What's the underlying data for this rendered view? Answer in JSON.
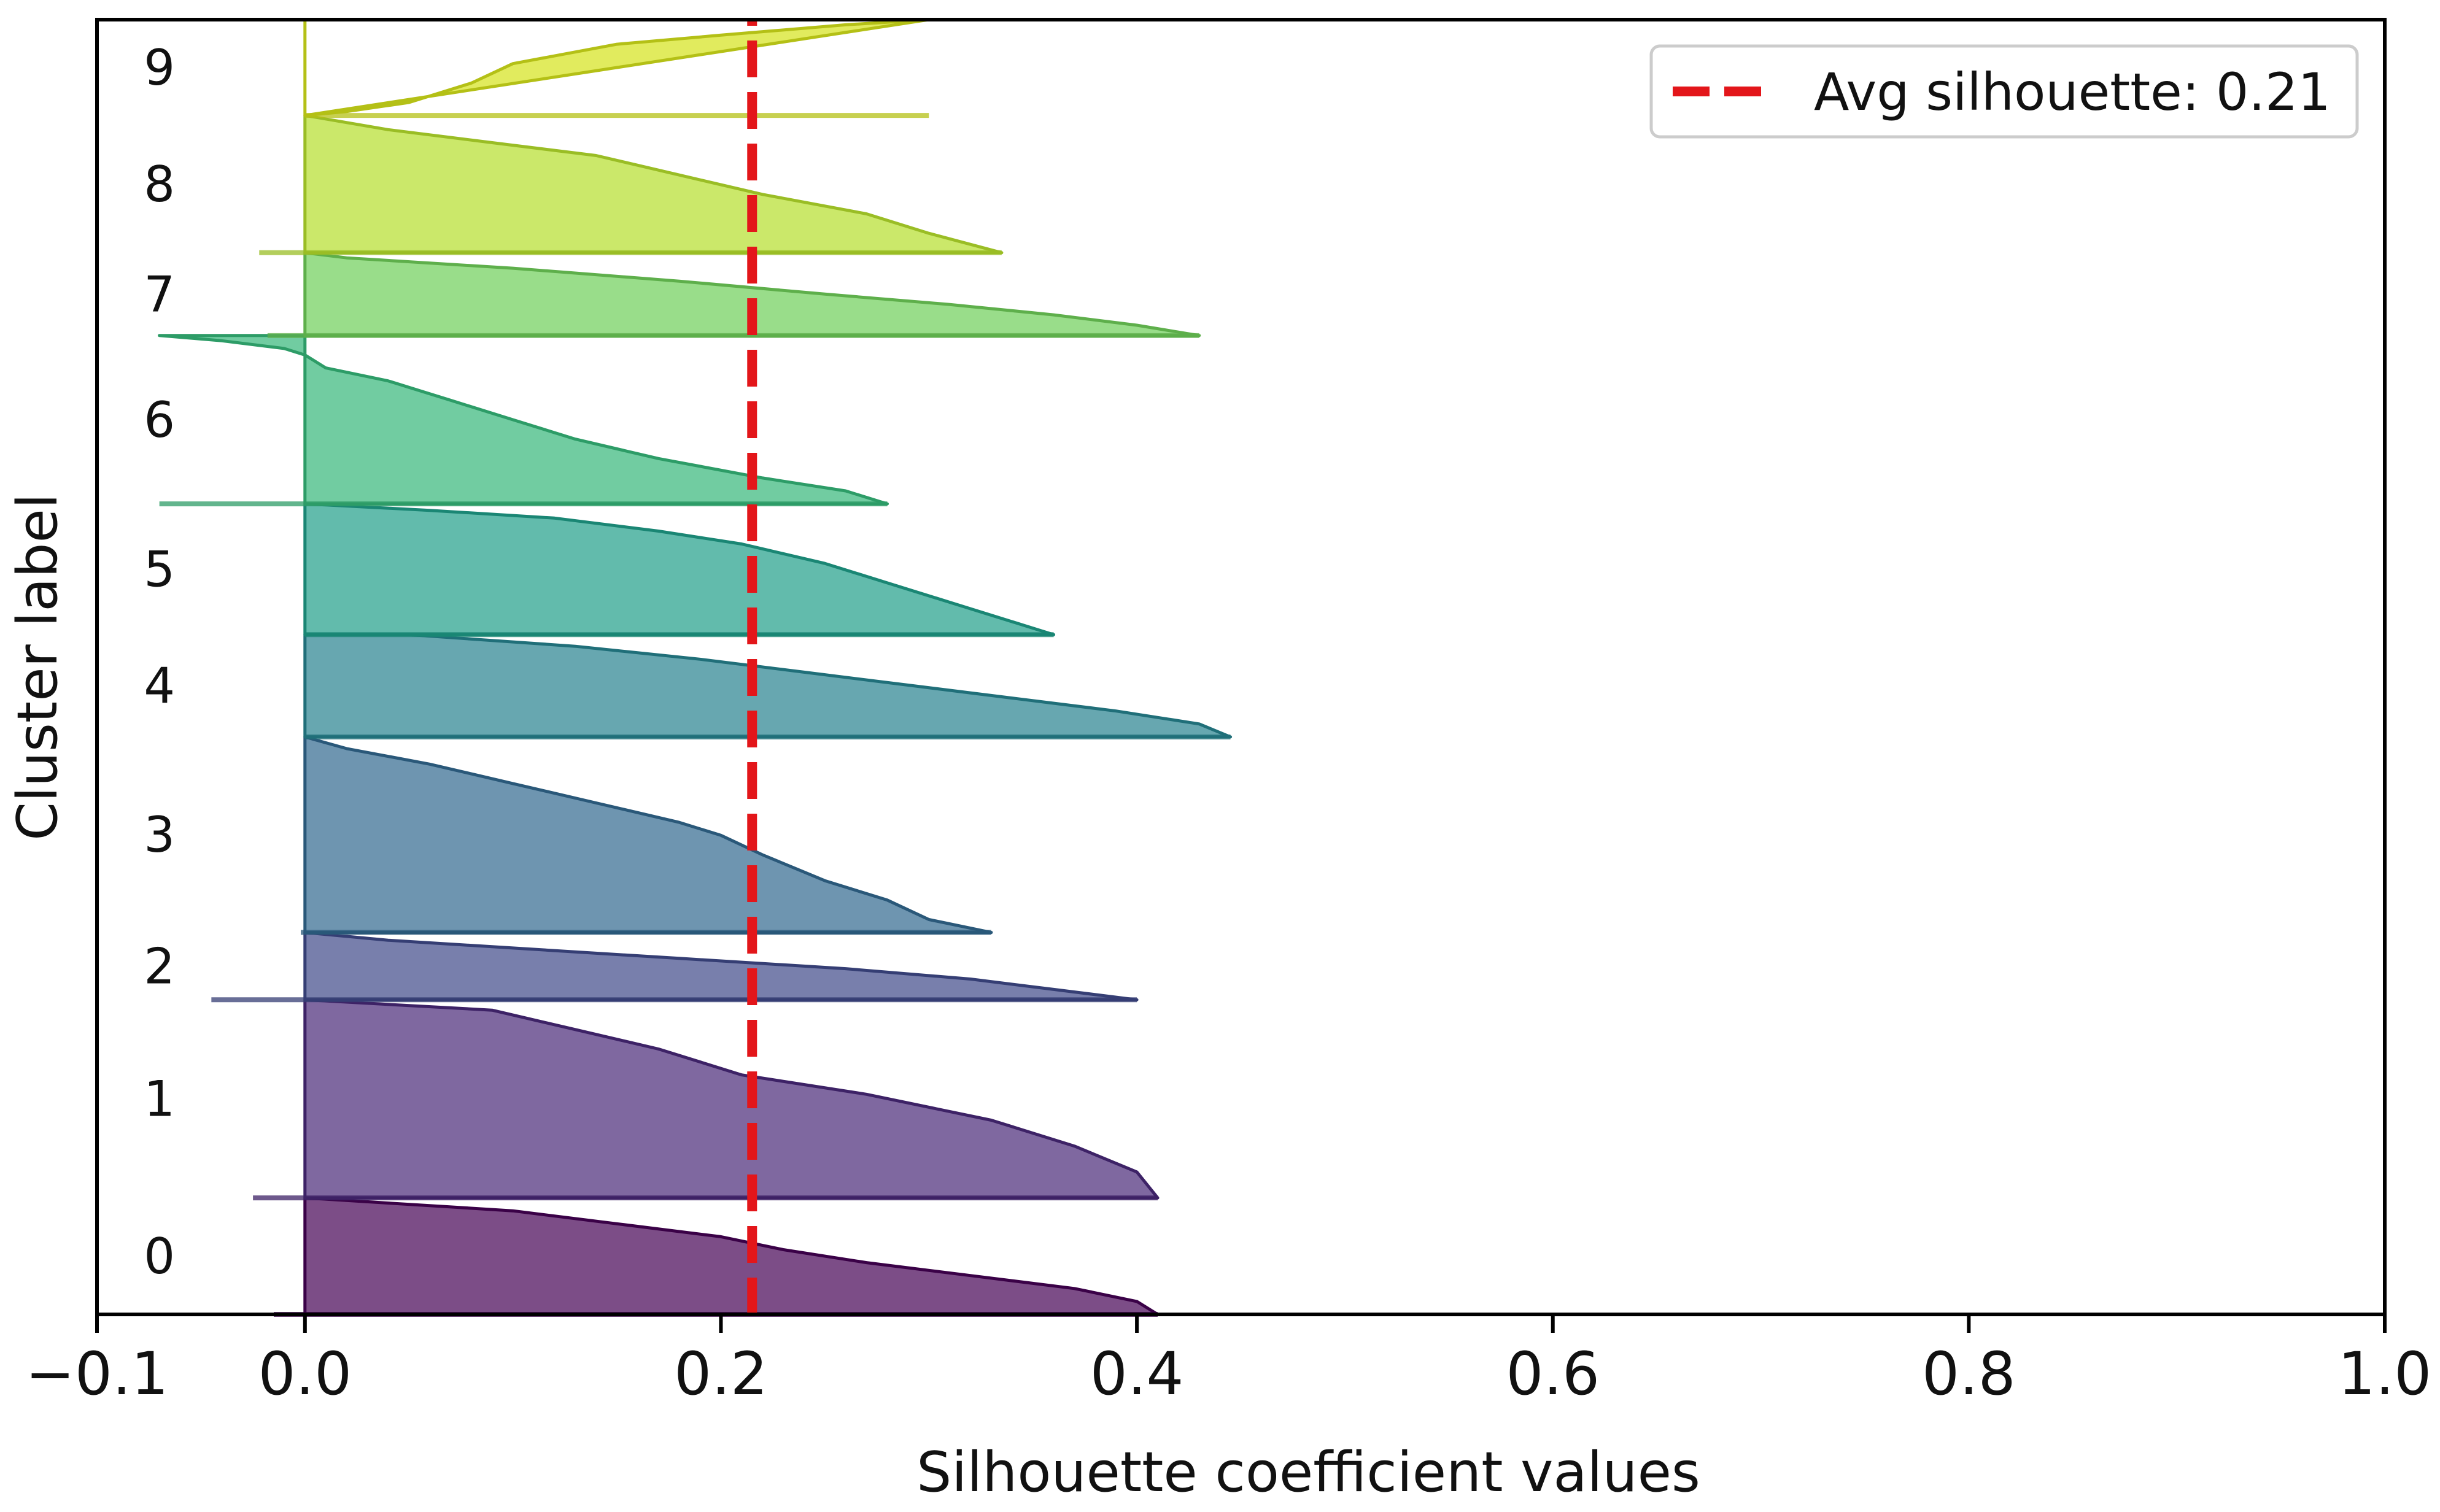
{
  "chart_data": {
    "type": "silhouette",
    "title": "",
    "xlabel": "Silhouette coefficient values",
    "ylabel": "Cluster label",
    "xlim": [
      -0.1,
      1.0
    ],
    "ylim": [
      0,
      100
    ],
    "xticks": [
      {
        "value": -0.1,
        "label": "−0.1"
      },
      {
        "value": 0.0,
        "label": "0.0"
      },
      {
        "value": 0.2,
        "label": "0.2"
      },
      {
        "value": 0.4,
        "label": "0.4"
      },
      {
        "value": 0.6,
        "label": "0.6"
      },
      {
        "value": 0.8,
        "label": "0.8"
      },
      {
        "value": 1.0,
        "label": "1.0"
      }
    ],
    "average_line": {
      "value": 0.215,
      "label": "Avg silhouette: 0.21",
      "color": "#e3161a",
      "style": "dashed"
    },
    "legend_position": "top-right",
    "clusters": [
      {
        "label": "0",
        "y_start": 0.0,
        "y_end": 9.0,
        "color": "#440154",
        "profile": [
          [
            0.41,
            0
          ],
          [
            0.4,
            1
          ],
          [
            0.37,
            2
          ],
          [
            0.32,
            3
          ],
          [
            0.27,
            4
          ],
          [
            0.23,
            5
          ],
          [
            0.2,
            6
          ],
          [
            0.15,
            7
          ],
          [
            0.1,
            8
          ],
          [
            0.0,
            9
          ]
        ],
        "negative_tail": [
          -0.015,
          0
        ]
      },
      {
        "label": "1",
        "y_start": 9.0,
        "y_end": 24.3,
        "color": "#482878",
        "profile": [
          [
            0.41,
            0
          ],
          [
            0.4,
            2
          ],
          [
            0.37,
            4
          ],
          [
            0.33,
            6
          ],
          [
            0.27,
            8
          ],
          [
            0.21,
            9.5
          ],
          [
            0.17,
            11.5
          ],
          [
            0.13,
            13
          ],
          [
            0.09,
            14.5
          ],
          [
            0.0,
            15.3
          ]
        ],
        "negative_tail": [
          -0.025,
          0
        ]
      },
      {
        "label": "2",
        "y_start": 24.3,
        "y_end": 29.5,
        "color": "#3e4989",
        "profile": [
          [
            0.4,
            0
          ],
          [
            0.36,
            0.8
          ],
          [
            0.32,
            1.6
          ],
          [
            0.26,
            2.4
          ],
          [
            0.18,
            3.2
          ],
          [
            0.1,
            4
          ],
          [
            0.04,
            4.6
          ],
          [
            0.0,
            5.2
          ]
        ],
        "negative_tail": [
          -0.045,
          0
        ]
      },
      {
        "label": "3",
        "y_start": 29.5,
        "y_end": 44.6,
        "color": "#31688e",
        "profile": [
          [
            0.33,
            0
          ],
          [
            0.3,
            1
          ],
          [
            0.28,
            2.5
          ],
          [
            0.25,
            4
          ],
          [
            0.22,
            6
          ],
          [
            0.2,
            7.5
          ],
          [
            0.18,
            8.5
          ],
          [
            0.14,
            10
          ],
          [
            0.1,
            11.5
          ],
          [
            0.06,
            13
          ],
          [
            0.02,
            14.2
          ],
          [
            0.0,
            15.1
          ]
        ],
        "negative_tail": [
          -0.002,
          0
        ]
      },
      {
        "label": "4",
        "y_start": 44.6,
        "y_end": 52.5,
        "color": "#26828e",
        "profile": [
          [
            0.445,
            0
          ],
          [
            0.43,
            1
          ],
          [
            0.39,
            2
          ],
          [
            0.34,
            3
          ],
          [
            0.29,
            4
          ],
          [
            0.24,
            5
          ],
          [
            0.19,
            6
          ],
          [
            0.13,
            7
          ],
          [
            0.05,
            7.9
          ],
          [
            0.0,
            7.9
          ]
        ],
        "negative_tail": [
          0,
          0
        ]
      },
      {
        "label": "5",
        "y_start": 52.5,
        "y_end": 62.6,
        "color": "#1f9e89",
        "profile": [
          [
            0.36,
            0
          ],
          [
            0.34,
            1
          ],
          [
            0.31,
            2.5
          ],
          [
            0.28,
            4
          ],
          [
            0.25,
            5.5
          ],
          [
            0.21,
            7
          ],
          [
            0.17,
            8
          ],
          [
            0.12,
            9
          ],
          [
            0.06,
            9.6
          ],
          [
            0.0,
            10.1
          ]
        ],
        "negative_tail": [
          0,
          0
        ]
      },
      {
        "label": "6",
        "y_start": 62.6,
        "y_end": 75.6,
        "color": "#35b779",
        "profile": [
          [
            0.28,
            0
          ],
          [
            0.26,
            1
          ],
          [
            0.22,
            2
          ],
          [
            0.17,
            3.5
          ],
          [
            0.13,
            5
          ],
          [
            0.1,
            6.5
          ],
          [
            0.07,
            8
          ],
          [
            0.04,
            9.5
          ],
          [
            0.01,
            10.5
          ],
          [
            0.0,
            11.5
          ],
          [
            -0.01,
            12
          ],
          [
            -0.04,
            12.6
          ],
          [
            -0.07,
            13
          ]
        ],
        "negative_tail": [
          -0.07,
          0
        ]
      },
      {
        "label": "7",
        "y_start": 75.6,
        "y_end": 82.0,
        "color": "#6ece58",
        "profile": [
          [
            0.43,
            0
          ],
          [
            0.4,
            0.8
          ],
          [
            0.36,
            1.6
          ],
          [
            0.31,
            2.4
          ],
          [
            0.25,
            3.2
          ],
          [
            0.18,
            4.2
          ],
          [
            0.1,
            5.2
          ],
          [
            0.02,
            6
          ],
          [
            0.0,
            6.4
          ]
        ],
        "negative_tail": [
          -0.018,
          0
        ]
      },
      {
        "label": "8",
        "y_start": 82.0,
        "y_end": 92.6,
        "color": "#b5de2b",
        "profile": [
          [
            0.335,
            0
          ],
          [
            0.3,
            1.5
          ],
          [
            0.27,
            3
          ],
          [
            0.22,
            4.5
          ],
          [
            0.18,
            6
          ],
          [
            0.14,
            7.5
          ],
          [
            0.09,
            8.5
          ],
          [
            0.04,
            9.5
          ],
          [
            0.0,
            10.6
          ]
        ],
        "negative_tail": [
          -0.022,
          0
        ]
      },
      {
        "label": "9",
        "y_start": 92.6,
        "y_end": 100.0,
        "color": "#d4e21a",
        "profile": [
          [
            0.3,
            7.4
          ],
          [
            0.26,
            7
          ],
          [
            0.2,
            6.2
          ],
          [
            0.15,
            5.5
          ],
          [
            0.1,
            4
          ],
          [
            0.08,
            2.5
          ],
          [
            0.05,
            1
          ],
          [
            0.02,
            0.3
          ],
          [
            0.0,
            0
          ]
        ],
        "negative_tail": [
          0,
          0
        ]
      }
    ]
  }
}
